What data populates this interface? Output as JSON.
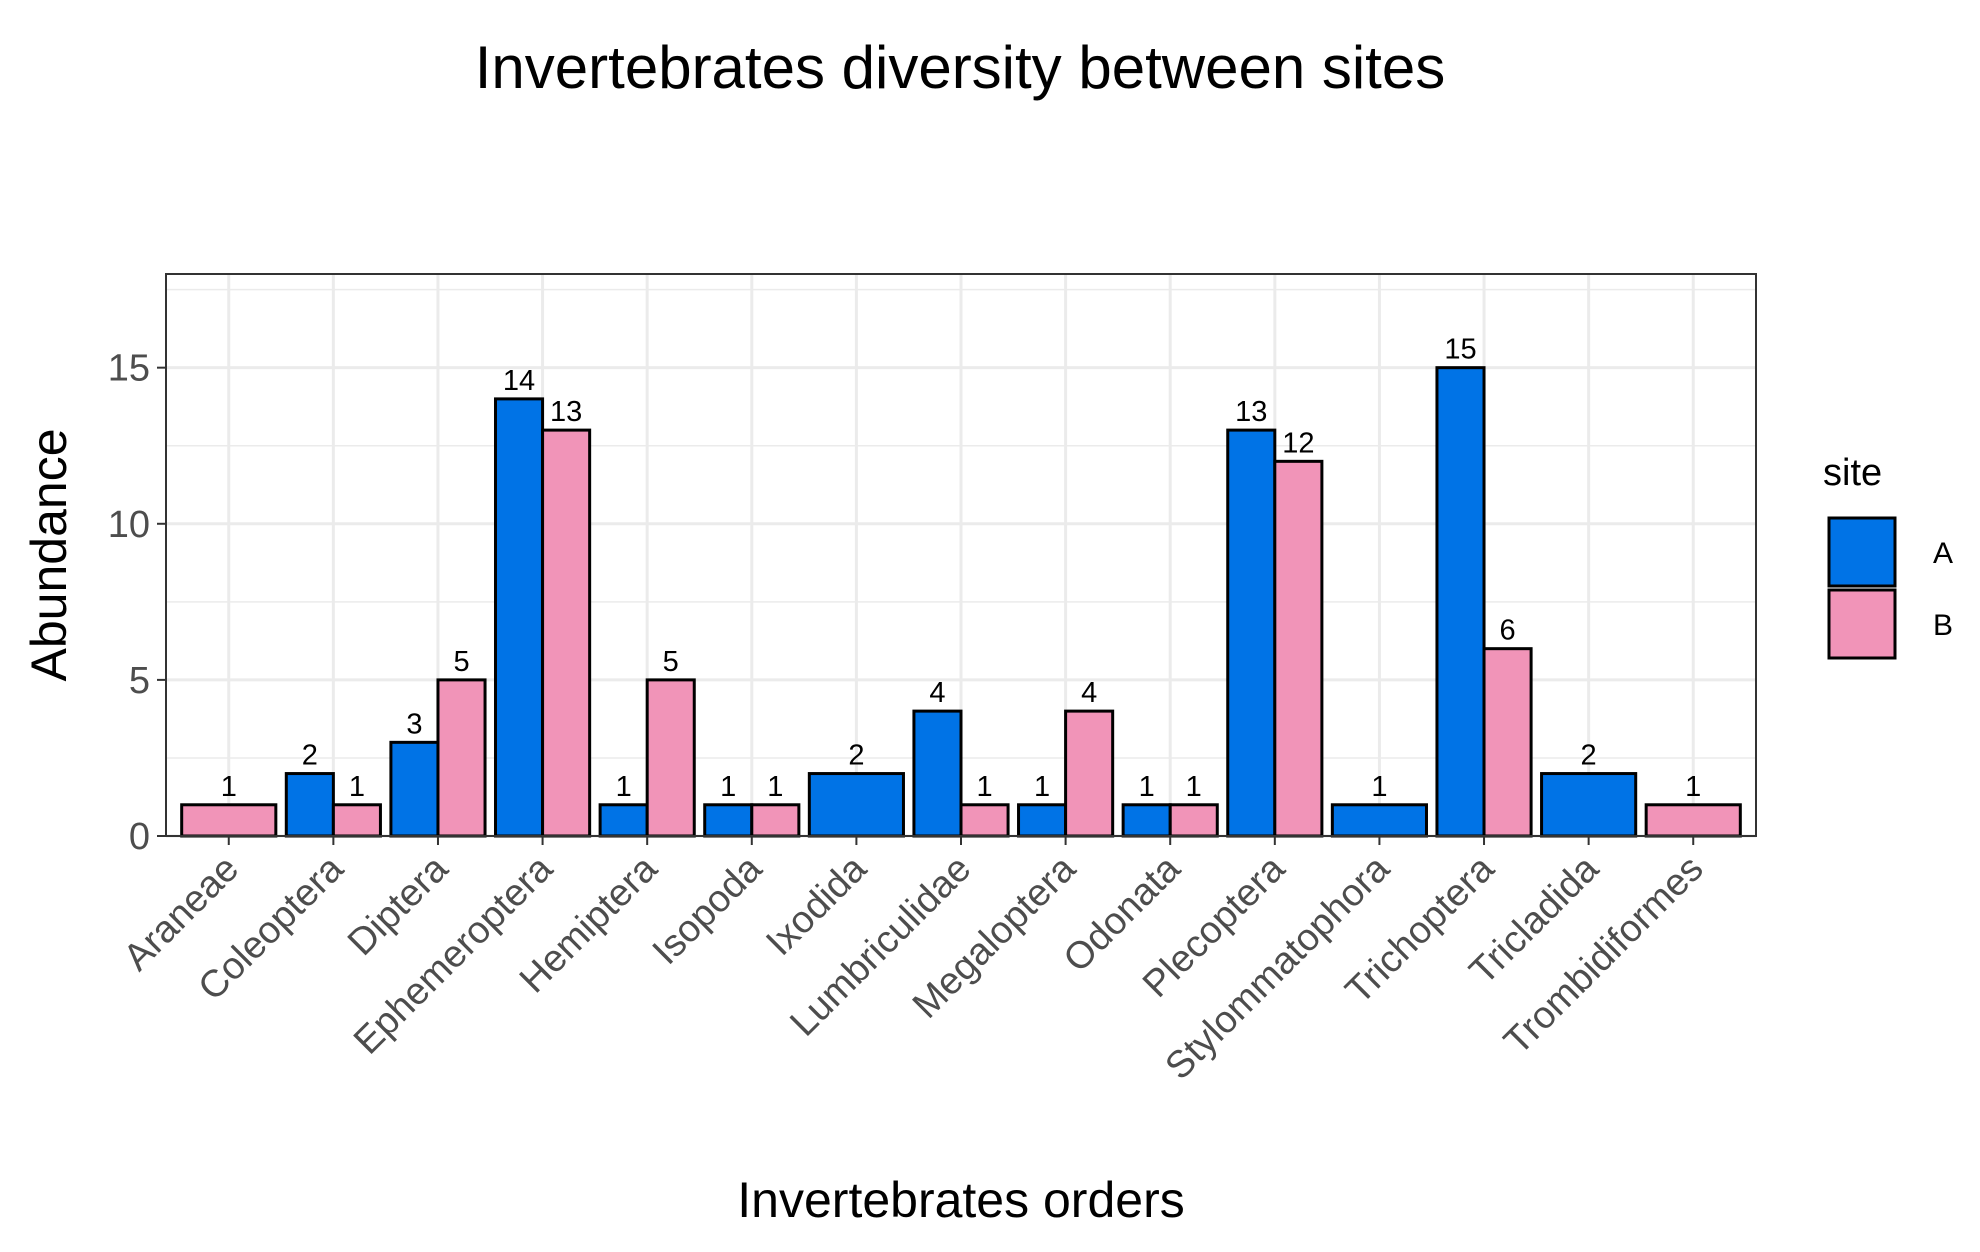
{
  "chart_data": {
    "type": "bar",
    "title": "Invertebrates diversity between sites",
    "xlabel": "Invertebrates orders",
    "ylabel": "Abundance",
    "ylim": [
      0,
      18
    ],
    "yticks": [
      0,
      5,
      10,
      15
    ],
    "grid": true,
    "legend": {
      "title": "site",
      "placement": "right"
    },
    "categories": [
      "Araneae",
      "Coleoptera",
      "Diptera",
      "Ephemeroptera",
      "Hemiptera",
      "Isopoda",
      "Ixodida",
      "Lumbriculidae",
      "Megaloptera",
      "Odonata",
      "Plecoptera",
      "Stylommatophora",
      "Trichoptera",
      "Tricladida",
      "Trombidiformes"
    ],
    "series": [
      {
        "name": "A",
        "color": "#0073e6",
        "values": [
          null,
          2,
          3,
          14,
          1,
          1,
          2,
          4,
          1,
          1,
          13,
          1,
          15,
          2,
          null
        ]
      },
      {
        "name": "B",
        "color": "#f194b8",
        "values": [
          1,
          1,
          5,
          13,
          5,
          1,
          null,
          1,
          4,
          1,
          12,
          null,
          6,
          null,
          1
        ]
      }
    ]
  }
}
